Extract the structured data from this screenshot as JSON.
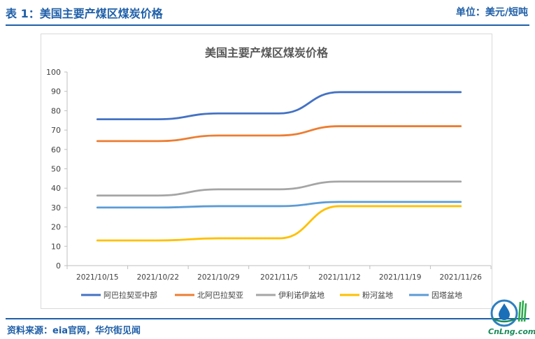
{
  "header": {
    "title": "表 1：美国主要产煤区煤炭价格",
    "unit": "单位：美元/短吨"
  },
  "footer": {
    "source": "资料来源：eia官网，华尔街见闻"
  },
  "logo": {
    "text": "CnLng.com",
    "icon": "droplet-logo-icon"
  },
  "chart_data": {
    "type": "line",
    "title": "美国主要产煤区煤炭价格",
    "categories": [
      "2021/10/15",
      "2021/10/22",
      "2021/10/29",
      "2021/11/5",
      "2021/11/12",
      "2021/11/19",
      "2021/11/26"
    ],
    "ylim": [
      0,
      100
    ],
    "yticks": [
      0,
      10,
      20,
      30,
      40,
      50,
      60,
      70,
      80,
      90,
      100
    ],
    "grid": false,
    "legend": "bottom",
    "series": [
      {
        "name": "阿巴拉契亚中部",
        "color": "#4472c4",
        "values": [
          75.6,
          75.6,
          78.6,
          78.6,
          89.6,
          89.6,
          89.6
        ]
      },
      {
        "name": "北阿巴拉契亚",
        "color": "#ed7d31",
        "values": [
          64.3,
          64.3,
          67.2,
          67.2,
          72.0,
          72.0,
          72.0
        ]
      },
      {
        "name": "伊利诺伊盆地",
        "color": "#a5a5a5",
        "values": [
          36.2,
          36.2,
          39.4,
          39.4,
          43.4,
          43.4,
          43.4
        ]
      },
      {
        "name": "粉河盆地",
        "color": "#ffc000",
        "values": [
          13.0,
          13.0,
          14.1,
          14.1,
          30.7,
          30.7,
          30.7
        ]
      },
      {
        "name": "因塔盆地",
        "color": "#5b9bd5",
        "values": [
          30.0,
          30.0,
          30.7,
          30.7,
          32.9,
          32.9,
          32.9
        ]
      }
    ]
  }
}
